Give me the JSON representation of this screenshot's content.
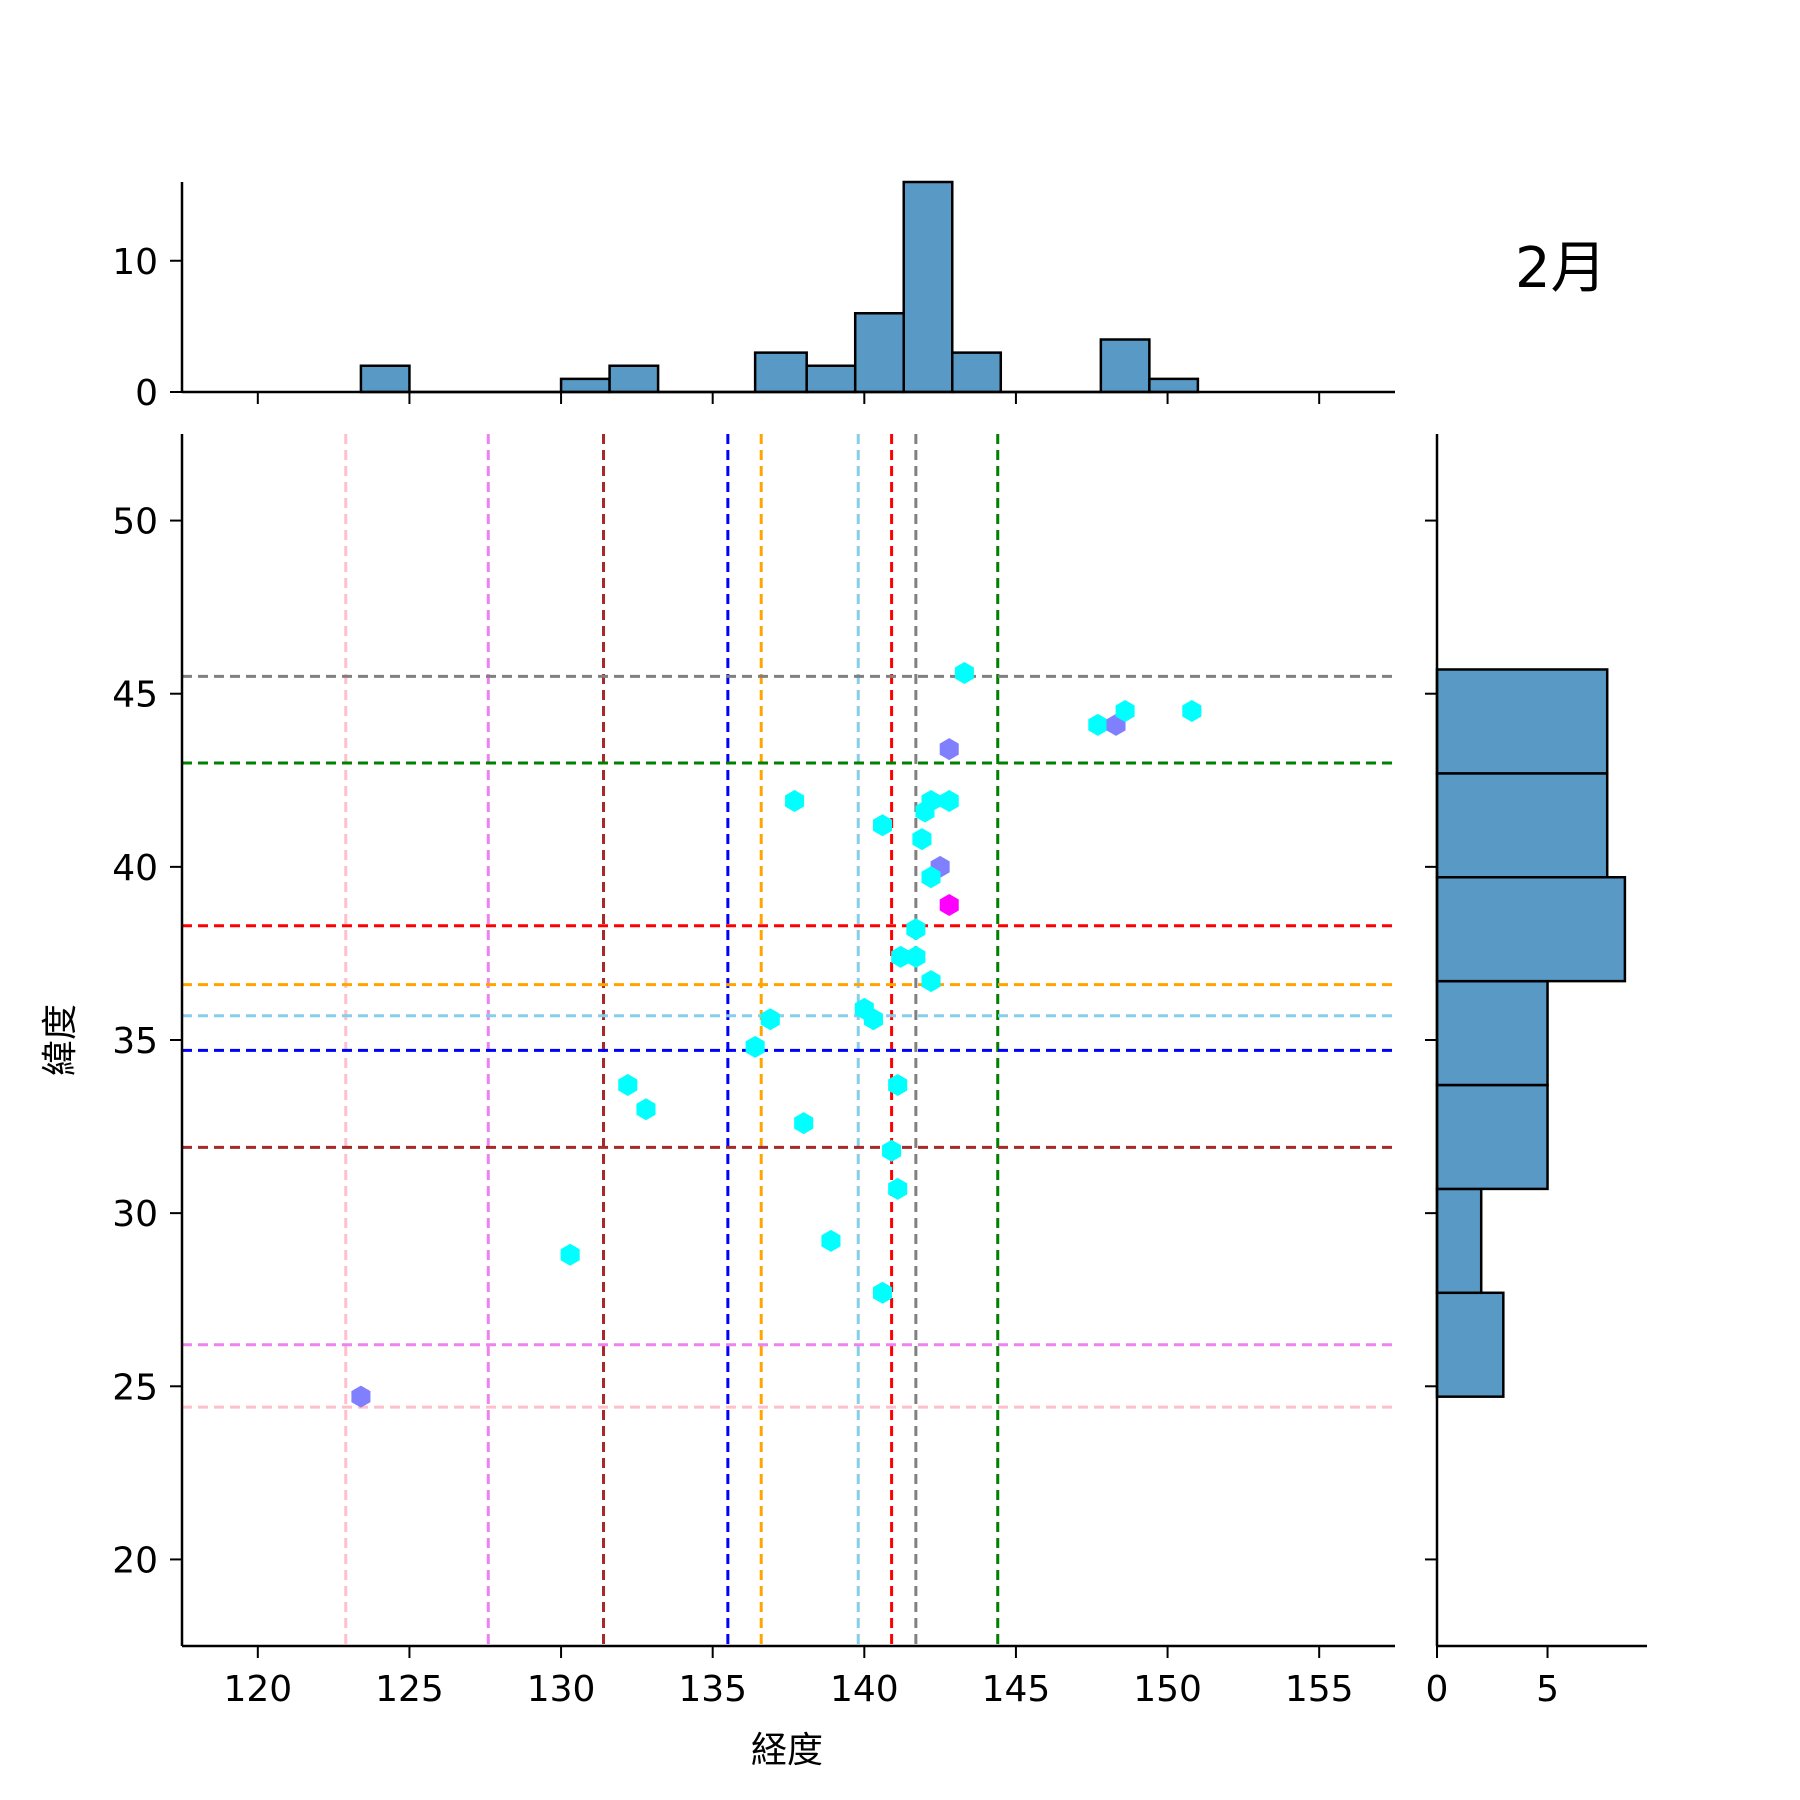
{
  "chart_data": {
    "type": "scatter",
    "title": "2月",
    "xlabel": "経度",
    "ylabel": "緯度",
    "xlim": [
      117.5,
      157.5
    ],
    "ylim": [
      17.5,
      52.5
    ],
    "xticks": [
      "120",
      "125",
      "130",
      "135",
      "140",
      "145",
      "150",
      "155"
    ],
    "yticks": [
      "20",
      "25",
      "30",
      "35",
      "40",
      "45",
      "50"
    ],
    "reference_lines": {
      "vertical": [
        {
          "x": 122.9,
          "color": "#ffc0cb"
        },
        {
          "x": 127.6,
          "color": "#ee82ee"
        },
        {
          "x": 131.4,
          "color": "#a52a2a"
        },
        {
          "x": 135.5,
          "color": "#0000ff"
        },
        {
          "x": 136.6,
          "color": "#ffa500"
        },
        {
          "x": 139.8,
          "color": "#87ceeb"
        },
        {
          "x": 140.9,
          "color": "#ff0000"
        },
        {
          "x": 141.7,
          "color": "#808080"
        },
        {
          "x": 144.4,
          "color": "#008000"
        }
      ],
      "horizontal": [
        {
          "y": 45.5,
          "color": "#808080"
        },
        {
          "y": 43.0,
          "color": "#008000"
        },
        {
          "y": 38.3,
          "color": "#ff0000"
        },
        {
          "y": 36.6,
          "color": "#ffa500"
        },
        {
          "y": 35.7,
          "color": "#87ceeb"
        },
        {
          "y": 34.7,
          "color": "#0000ff"
        },
        {
          "y": 31.9,
          "color": "#a52a2a"
        },
        {
          "y": 26.2,
          "color": "#ee82ee"
        },
        {
          "y": 24.4,
          "color": "#ffc0cb"
        }
      ]
    },
    "points": [
      {
        "x": 143.3,
        "y": 45.6,
        "color": "#00ffff"
      },
      {
        "x": 147.7,
        "y": 44.1,
        "color": "#00ffff"
      },
      {
        "x": 148.3,
        "y": 44.1,
        "color": "#8080ff"
      },
      {
        "x": 148.6,
        "y": 44.5,
        "color": "#00ffff"
      },
      {
        "x": 150.8,
        "y": 44.5,
        "color": "#00ffff"
      },
      {
        "x": 142.8,
        "y": 43.4,
        "color": "#8080ff"
      },
      {
        "x": 137.7,
        "y": 41.9,
        "color": "#00ffff"
      },
      {
        "x": 142.2,
        "y": 41.9,
        "color": "#00ffff"
      },
      {
        "x": 142.8,
        "y": 41.9,
        "color": "#00ffff"
      },
      {
        "x": 142.0,
        "y": 41.6,
        "color": "#00ffff"
      },
      {
        "x": 140.6,
        "y": 41.2,
        "color": "#00ffff"
      },
      {
        "x": 141.9,
        "y": 40.8,
        "color": "#00ffff"
      },
      {
        "x": 142.5,
        "y": 40.0,
        "color": "#8080ff"
      },
      {
        "x": 142.2,
        "y": 39.7,
        "color": "#00ffff"
      },
      {
        "x": 142.8,
        "y": 38.9,
        "color": "#ff00ff"
      },
      {
        "x": 141.7,
        "y": 38.2,
        "color": "#00ffff"
      },
      {
        "x": 141.2,
        "y": 37.4,
        "color": "#00ffff"
      },
      {
        "x": 141.7,
        "y": 37.4,
        "color": "#00ffff"
      },
      {
        "x": 142.2,
        "y": 36.7,
        "color": "#00ffff"
      },
      {
        "x": 140.0,
        "y": 35.9,
        "color": "#00ffff"
      },
      {
        "x": 140.3,
        "y": 35.6,
        "color": "#00ffff"
      },
      {
        "x": 136.9,
        "y": 35.6,
        "color": "#00ffff"
      },
      {
        "x": 136.4,
        "y": 34.8,
        "color": "#00ffff"
      },
      {
        "x": 132.2,
        "y": 33.7,
        "color": "#00ffff"
      },
      {
        "x": 141.1,
        "y": 33.7,
        "color": "#00ffff"
      },
      {
        "x": 132.8,
        "y": 33.0,
        "color": "#00ffff"
      },
      {
        "x": 138.0,
        "y": 32.6,
        "color": "#00ffff"
      },
      {
        "x": 140.9,
        "y": 31.8,
        "color": "#00ffff"
      },
      {
        "x": 141.1,
        "y": 30.7,
        "color": "#00ffff"
      },
      {
        "x": 130.3,
        "y": 28.8,
        "color": "#00ffff"
      },
      {
        "x": 138.9,
        "y": 29.2,
        "color": "#00ffff"
      },
      {
        "x": 140.6,
        "y": 27.7,
        "color": "#00ffff"
      },
      {
        "x": 123.4,
        "y": 24.7,
        "color": "#8080ff"
      }
    ],
    "marginal_x": {
      "bins": [
        {
          "x0": 123.4,
          "x1": 125.0,
          "count": 2
        },
        {
          "x0": 125.0,
          "x1": 130.0,
          "count": 0
        },
        {
          "x0": 130.0,
          "x1": 131.6,
          "count": 1
        },
        {
          "x0": 131.6,
          "x1": 133.2,
          "count": 2
        },
        {
          "x0": 133.2,
          "x1": 136.4,
          "count": 0
        },
        {
          "x0": 136.4,
          "x1": 138.1,
          "count": 3
        },
        {
          "x0": 138.1,
          "x1": 139.7,
          "count": 2
        },
        {
          "x0": 139.7,
          "x1": 141.3,
          "count": 6
        },
        {
          "x0": 141.3,
          "x1": 142.9,
          "count": 16
        },
        {
          "x0": 142.9,
          "x1": 144.5,
          "count": 3
        },
        {
          "x0": 144.5,
          "x1": 147.8,
          "count": 0
        },
        {
          "x0": 147.8,
          "x1": 149.4,
          "count": 4
        },
        {
          "x0": 149.4,
          "x1": 151.0,
          "count": 1
        }
      ],
      "ticks": [
        "0",
        "10"
      ],
      "ylim": [
        0,
        16
      ]
    },
    "marginal_y": {
      "bins": [
        {
          "y0": 24.7,
          "y1": 27.7,
          "count": 3
        },
        {
          "y0": 27.7,
          "y1": 30.7,
          "count": 2
        },
        {
          "y0": 30.7,
          "y1": 33.7,
          "count": 5
        },
        {
          "y0": 33.7,
          "y1": 36.7,
          "count": 5
        },
        {
          "y0": 36.7,
          "y1": 39.7,
          "count": 8.5
        },
        {
          "y0": 39.7,
          "y1": 42.7,
          "count": 7.7
        },
        {
          "y0": 42.7,
          "y1": 45.7,
          "count": 7.7
        }
      ],
      "ticks": [
        "0",
        "5"
      ],
      "xlim": [
        0,
        9.5
      ]
    },
    "colors": {
      "bar_fill": "#5899c6",
      "bar_edge": "#000000",
      "axis": "#000000"
    }
  }
}
